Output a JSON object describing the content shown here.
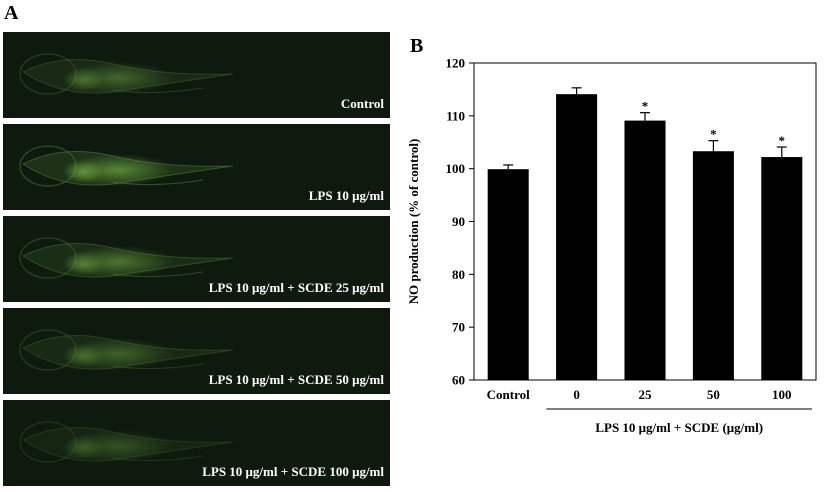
{
  "panel_a": {
    "label": "A",
    "panels": [
      {
        "caption": "Control",
        "intensity": 0.55
      },
      {
        "caption": "LPS 10 μg/ml",
        "intensity": 1.0
      },
      {
        "caption": "LPS 10 μg/ml + SCDE 25 μg/ml",
        "intensity": 0.75
      },
      {
        "caption": "LPS 10 μg/ml + SCDE 50 μg/ml",
        "intensity": 0.5
      },
      {
        "caption": "LPS 10 μg/ml + SCDE 100 μg/ml",
        "intensity": 0.3
      }
    ]
  },
  "panel_b": {
    "label": "B"
  },
  "chart_data": {
    "type": "bar",
    "categories": [
      "Control",
      "0",
      "25",
      "50",
      "100"
    ],
    "values": [
      99.9,
      114.1,
      109.1,
      103.3,
      102.2
    ],
    "errors": [
      0.8,
      1.2,
      1.5,
      2.0,
      1.9
    ],
    "significance": [
      "",
      "",
      "*",
      "*",
      "*"
    ],
    "ylabel": "NO production (% of control)",
    "group_label": "LPS 10 μg/ml + SCDE (μg/ml)",
    "ylim": [
      60,
      120
    ],
    "yticks": [
      60,
      70,
      80,
      90,
      100,
      110,
      120
    ],
    "bar_color": "#000000",
    "grid": false
  }
}
